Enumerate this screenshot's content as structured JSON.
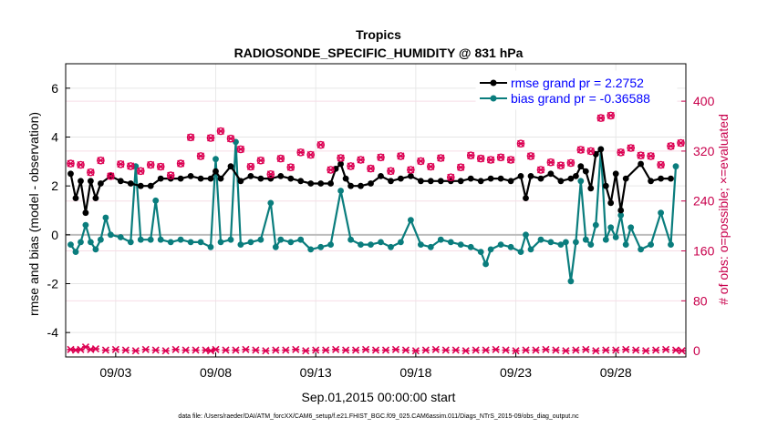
{
  "chart_data": {
    "type": "line",
    "title": "Tropics",
    "subtitle": "RADIOSONDE_SPECIFIC_HUMIDITY @ 831 hPa",
    "xlabel": "Sep.01,2015 00:00:00 start",
    "ylabel_left": "rmse and bias (model - observation)",
    "ylabel_right": "# of obs: o=possible; ×=evaluated",
    "footnote": "data file: /Users/raeder/DAI/ATM_forcXX/CAM6_setup/f.e21.FHIST_BGC.f09_025.CAM6assim.011/Diags_NTrS_2015-09/obs_diag_output.nc",
    "x_range": [
      0.5,
      31.5
    ],
    "y_left_range": [
      -5,
      7
    ],
    "y_right_range": [
      -10,
      460
    ],
    "x_ticks": [
      {
        "day": 3,
        "label": "09/03"
      },
      {
        "day": 8,
        "label": "09/08"
      },
      {
        "day": 13,
        "label": "09/13"
      },
      {
        "day": 18,
        "label": "09/18"
      },
      {
        "day": 23,
        "label": "09/23"
      },
      {
        "day": 28,
        "label": "09/28"
      }
    ],
    "y_left_ticks": [
      {
        "v": 6,
        "label": "6"
      },
      {
        "v": 4,
        "label": "4"
      },
      {
        "v": 2,
        "label": "2"
      },
      {
        "v": 0,
        "label": "0"
      },
      {
        "v": -2,
        "label": "-2"
      },
      {
        "v": -4,
        "label": "-4"
      }
    ],
    "y_right_ticks": [
      {
        "v": 400,
        "label": "400"
      },
      {
        "v": 320,
        "label": "320"
      },
      {
        "v": 240,
        "label": "240"
      },
      {
        "v": 160,
        "label": "160"
      },
      {
        "v": 80,
        "label": "80"
      },
      {
        "v": 0,
        "label": "0"
      }
    ],
    "legend": [
      {
        "name": "rmse",
        "label": "rmse grand pr = 2.2752"
      },
      {
        "name": "bias",
        "label": "bias grand pr = -0.36588"
      }
    ],
    "series": [
      {
        "name": "rmse",
        "color": "#000000",
        "points": [
          [
            0.75,
            2.5
          ],
          [
            1.0,
            1.5
          ],
          [
            1.25,
            2.2
          ],
          [
            1.5,
            0.9
          ],
          [
            1.75,
            2.2
          ],
          [
            2.0,
            1.5
          ],
          [
            2.25,
            2.1
          ],
          [
            2.75,
            2.4
          ],
          [
            3.25,
            2.2
          ],
          [
            3.75,
            2.1
          ],
          [
            4.25,
            2.0
          ],
          [
            4.75,
            2.0
          ],
          [
            5.25,
            2.3
          ],
          [
            5.75,
            2.3
          ],
          [
            6.25,
            2.3
          ],
          [
            6.75,
            2.4
          ],
          [
            7.25,
            2.3
          ],
          [
            7.75,
            2.3
          ],
          [
            8.0,
            2.6
          ],
          [
            8.25,
            2.3
          ],
          [
            8.75,
            2.8
          ],
          [
            9.25,
            2.2
          ],
          [
            9.75,
            2.4
          ],
          [
            10.25,
            2.3
          ],
          [
            10.75,
            2.3
          ],
          [
            11.25,
            2.4
          ],
          [
            11.75,
            2.3
          ],
          [
            12.25,
            2.2
          ],
          [
            12.75,
            2.1
          ],
          [
            13.25,
            2.1
          ],
          [
            13.75,
            2.1
          ],
          [
            14.0,
            2.7
          ],
          [
            14.25,
            2.9
          ],
          [
            14.5,
            2.3
          ],
          [
            14.75,
            2.0
          ],
          [
            15.25,
            2.0
          ],
          [
            15.75,
            2.1
          ],
          [
            16.25,
            2.4
          ],
          [
            16.75,
            2.2
          ],
          [
            17.25,
            2.3
          ],
          [
            17.75,
            2.4
          ],
          [
            18.25,
            2.2
          ],
          [
            18.75,
            2.2
          ],
          [
            19.25,
            2.2
          ],
          [
            19.75,
            2.2
          ],
          [
            20.25,
            2.2
          ],
          [
            20.75,
            2.3
          ],
          [
            21.25,
            2.2
          ],
          [
            21.75,
            2.3
          ],
          [
            22.25,
            2.3
          ],
          [
            22.75,
            2.2
          ],
          [
            23.25,
            2.4
          ],
          [
            23.5,
            1.5
          ],
          [
            23.75,
            2.4
          ],
          [
            24.25,
            2.3
          ],
          [
            24.75,
            2.5
          ],
          [
            25.25,
            2.2
          ],
          [
            25.75,
            2.3
          ],
          [
            26.0,
            2.4
          ],
          [
            26.25,
            2.8
          ],
          [
            26.5,
            2.6
          ],
          [
            26.75,
            1.9
          ],
          [
            27.0,
            3.3
          ],
          [
            27.25,
            3.5
          ],
          [
            27.5,
            2.0
          ],
          [
            27.75,
            1.3
          ],
          [
            28.0,
            2.5
          ],
          [
            28.25,
            1.0
          ],
          [
            28.5,
            2.3
          ],
          [
            29.25,
            2.9
          ],
          [
            29.75,
            2.2
          ],
          [
            30.25,
            2.3
          ],
          [
            30.75,
            2.3
          ]
        ]
      },
      {
        "name": "bias",
        "color": "#0a7d7d",
        "points": [
          [
            0.75,
            -0.4
          ],
          [
            1.0,
            -0.7
          ],
          [
            1.25,
            -0.3
          ],
          [
            1.5,
            0.4
          ],
          [
            1.75,
            -0.3
          ],
          [
            2.0,
            -0.6
          ],
          [
            2.25,
            -0.2
          ],
          [
            2.5,
            0.7
          ],
          [
            2.75,
            0.0
          ],
          [
            3.25,
            -0.1
          ],
          [
            3.75,
            -0.3
          ],
          [
            4.0,
            2.8
          ],
          [
            4.25,
            -0.2
          ],
          [
            4.75,
            -0.2
          ],
          [
            5.0,
            1.4
          ],
          [
            5.25,
            -0.2
          ],
          [
            5.75,
            -0.3
          ],
          [
            6.25,
            -0.2
          ],
          [
            6.75,
            -0.3
          ],
          [
            7.25,
            -0.3
          ],
          [
            7.75,
            -0.5
          ],
          [
            8.0,
            3.1
          ],
          [
            8.25,
            -0.3
          ],
          [
            8.75,
            -0.2
          ],
          [
            9.0,
            3.8
          ],
          [
            9.25,
            -0.4
          ],
          [
            9.75,
            -0.3
          ],
          [
            10.25,
            -0.2
          ],
          [
            10.75,
            1.3
          ],
          [
            11.0,
            -0.5
          ],
          [
            11.25,
            -0.2
          ],
          [
            11.75,
            -0.3
          ],
          [
            12.25,
            -0.2
          ],
          [
            12.75,
            -0.6
          ],
          [
            13.25,
            -0.5
          ],
          [
            13.75,
            -0.4
          ],
          [
            14.25,
            1.8
          ],
          [
            14.75,
            -0.2
          ],
          [
            15.25,
            -0.4
          ],
          [
            15.75,
            -0.4
          ],
          [
            16.25,
            -0.3
          ],
          [
            16.75,
            -0.5
          ],
          [
            17.25,
            -0.3
          ],
          [
            17.75,
            0.6
          ],
          [
            18.25,
            -0.4
          ],
          [
            18.75,
            -0.5
          ],
          [
            19.25,
            -0.2
          ],
          [
            19.75,
            -0.3
          ],
          [
            20.25,
            -0.4
          ],
          [
            20.75,
            -0.5
          ],
          [
            21.25,
            -0.7
          ],
          [
            21.5,
            -1.2
          ],
          [
            21.75,
            -0.6
          ],
          [
            22.25,
            -0.4
          ],
          [
            22.75,
            -0.5
          ],
          [
            23.25,
            -0.7
          ],
          [
            23.5,
            0.0
          ],
          [
            23.75,
            -0.6
          ],
          [
            24.25,
            -0.2
          ],
          [
            24.75,
            -0.3
          ],
          [
            25.25,
            -0.4
          ],
          [
            25.5,
            -0.3
          ],
          [
            25.75,
            -1.9
          ],
          [
            26.0,
            -0.3
          ],
          [
            26.25,
            2.2
          ],
          [
            26.5,
            -0.2
          ],
          [
            26.75,
            -0.4
          ],
          [
            27.0,
            0.4
          ],
          [
            27.25,
            3.5
          ],
          [
            27.5,
            -0.2
          ],
          [
            27.75,
            0.3
          ],
          [
            28.0,
            -0.1
          ],
          [
            28.25,
            0.8
          ],
          [
            28.5,
            -0.4
          ],
          [
            28.75,
            0.3
          ],
          [
            29.25,
            -0.6
          ],
          [
            29.75,
            -0.4
          ],
          [
            30.25,
            0.9
          ],
          [
            30.75,
            -0.4
          ],
          [
            31.0,
            2.8
          ]
        ]
      }
    ],
    "obs_possible": {
      "name": "possible",
      "color": "#dc0052",
      "points": [
        [
          0.75,
          300
        ],
        [
          1.25,
          298
        ],
        [
          1.75,
          286
        ],
        [
          2.25,
          305
        ],
        [
          2.75,
          280
        ],
        [
          3.25,
          299
        ],
        [
          3.75,
          296
        ],
        [
          4.25,
          288
        ],
        [
          4.75,
          298
        ],
        [
          5.25,
          295
        ],
        [
          5.75,
          281
        ],
        [
          6.25,
          300
        ],
        [
          6.75,
          342
        ],
        [
          7.25,
          312
        ],
        [
          7.75,
          341
        ],
        [
          8.25,
          352
        ],
        [
          8.75,
          340
        ],
        [
          9.25,
          323
        ],
        [
          9.75,
          295
        ],
        [
          10.25,
          305
        ],
        [
          10.75,
          283
        ],
        [
          11.25,
          308
        ],
        [
          11.75,
          294
        ],
        [
          12.25,
          318
        ],
        [
          12.75,
          314
        ],
        [
          13.25,
          330
        ],
        [
          13.75,
          290
        ],
        [
          14.25,
          309
        ],
        [
          14.75,
          296
        ],
        [
          15.25,
          306
        ],
        [
          15.75,
          292
        ],
        [
          16.25,
          310
        ],
        [
          16.75,
          288
        ],
        [
          17.25,
          312
        ],
        [
          17.75,
          290
        ],
        [
          18.25,
          304
        ],
        [
          18.75,
          295
        ],
        [
          19.25,
          309
        ],
        [
          19.75,
          278
        ],
        [
          20.25,
          294
        ],
        [
          20.75,
          313
        ],
        [
          21.25,
          308
        ],
        [
          21.75,
          306
        ],
        [
          22.25,
          310
        ],
        [
          22.75,
          306
        ],
        [
          23.25,
          332
        ],
        [
          23.75,
          312
        ],
        [
          24.25,
          290
        ],
        [
          24.75,
          302
        ],
        [
          25.25,
          297
        ],
        [
          25.75,
          301
        ],
        [
          26.25,
          322
        ],
        [
          26.75,
          320
        ],
        [
          27.25,
          373
        ],
        [
          27.75,
          377
        ],
        [
          28.25,
          318
        ],
        [
          28.75,
          325
        ],
        [
          29.25,
          313
        ],
        [
          29.75,
          312
        ],
        [
          30.25,
          298
        ],
        [
          30.75,
          328
        ],
        [
          31.25,
          333
        ]
      ]
    },
    "obs_evaluated": {
      "name": "evaluated",
      "color": "#dc0052",
      "points": [
        [
          0.75,
          2
        ],
        [
          1.0,
          1
        ],
        [
          1.25,
          2
        ],
        [
          1.5,
          6
        ],
        [
          1.75,
          2
        ],
        [
          2.0,
          3
        ],
        [
          2.5,
          1
        ],
        [
          3.0,
          2
        ],
        [
          3.5,
          1
        ],
        [
          4.0,
          0
        ],
        [
          4.5,
          2
        ],
        [
          5.0,
          1
        ],
        [
          5.5,
          0
        ],
        [
          6.0,
          2
        ],
        [
          6.5,
          1
        ],
        [
          7.0,
          1
        ],
        [
          7.5,
          1
        ],
        [
          7.75,
          0
        ],
        [
          8.0,
          2
        ],
        [
          8.5,
          1
        ],
        [
          9.0,
          1
        ],
        [
          9.5,
          2
        ],
        [
          10.0,
          1
        ],
        [
          10.5,
          0
        ],
        [
          11.0,
          1
        ],
        [
          11.5,
          1
        ],
        [
          12.0,
          2
        ],
        [
          12.5,
          0
        ],
        [
          13.0,
          1
        ],
        [
          13.5,
          1
        ],
        [
          14.0,
          2
        ],
        [
          14.5,
          1
        ],
        [
          15.0,
          1
        ],
        [
          15.5,
          2
        ],
        [
          16.0,
          1
        ],
        [
          16.5,
          1
        ],
        [
          17.0,
          2
        ],
        [
          17.5,
          1
        ],
        [
          18.0,
          0
        ],
        [
          18.5,
          1
        ],
        [
          19.0,
          2
        ],
        [
          19.5,
          1
        ],
        [
          20.0,
          1
        ],
        [
          20.5,
          0
        ],
        [
          21.0,
          1
        ],
        [
          21.5,
          1
        ],
        [
          22.0,
          2
        ],
        [
          22.5,
          1
        ],
        [
          23.0,
          0
        ],
        [
          23.5,
          1
        ],
        [
          24.0,
          1
        ],
        [
          24.5,
          2
        ],
        [
          25.0,
          1
        ],
        [
          25.5,
          0
        ],
        [
          26.0,
          1
        ],
        [
          26.5,
          2
        ],
        [
          27.0,
          0
        ],
        [
          27.5,
          1
        ],
        [
          28.0,
          1
        ],
        [
          28.5,
          2
        ],
        [
          29.0,
          1
        ],
        [
          29.5,
          0
        ],
        [
          30.0,
          1
        ],
        [
          30.5,
          2
        ],
        [
          31.0,
          1
        ],
        [
          31.3,
          0
        ]
      ]
    }
  }
}
